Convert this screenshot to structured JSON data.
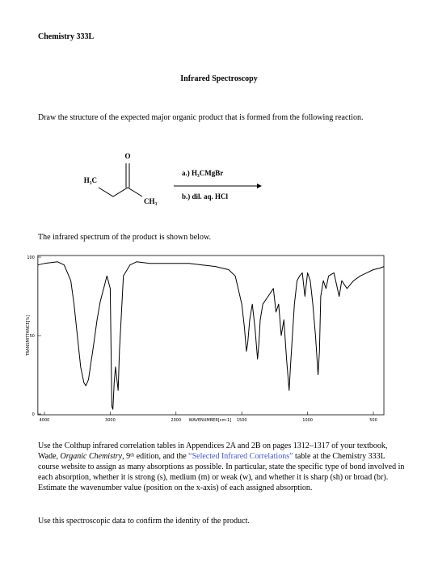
{
  "header": {
    "course": "Chemistry 333L",
    "title": "Infrared Spectroscopy"
  },
  "question": "Draw the structure of the expected major organic product that is formed from the following reaction.",
  "reaction": {
    "carbonyl_o": "O",
    "left_group": "H₃C",
    "right_group": "CH₃",
    "step_a": "a.) H₃CMgBr",
    "step_b": "b.) dil. aq. HCl"
  },
  "spectrum_intro": "The infrared spectrum of the product is shown below.",
  "chart_data": {
    "type": "line",
    "xlabel": "WAVENUMBER[cm-1]",
    "ylabel": "TRANSMITTANCE[%]",
    "xlim": [
      4100,
      420
    ],
    "xticks": [
      4000,
      3000,
      2000,
      1500,
      1000,
      500
    ],
    "ylim": [
      0,
      100
    ],
    "yticks": [
      0,
      50,
      100
    ],
    "color": "#000000",
    "x": [
      4100,
      4000,
      3800,
      3700,
      3600,
      3550,
      3500,
      3450,
      3400,
      3370,
      3330,
      3250,
      3200,
      3150,
      3100,
      3050,
      3000,
      2975,
      2960,
      2940,
      2920,
      2880,
      2860,
      2800,
      2700,
      2600,
      2400,
      2200,
      2000,
      1900,
      1800,
      1700,
      1600,
      1550,
      1500,
      1480,
      1465,
      1455,
      1440,
      1420,
      1400,
      1380,
      1370,
      1360,
      1340,
      1300,
      1260,
      1240,
      1220,
      1200,
      1180,
      1160,
      1140,
      1130,
      1100,
      1080,
      1060,
      1040,
      1020,
      1000,
      980,
      960,
      940,
      920,
      910,
      900,
      880,
      860,
      840,
      800,
      760,
      740,
      700,
      650,
      600,
      550,
      500,
      450,
      420
    ],
    "values": [
      95,
      96,
      97,
      95,
      85,
      70,
      50,
      30,
      20,
      18,
      22,
      45,
      60,
      72,
      80,
      88,
      80,
      5,
      3,
      20,
      30,
      15,
      40,
      88,
      95,
      97,
      96,
      96,
      96,
      96,
      95,
      94,
      92,
      88,
      70,
      55,
      40,
      45,
      60,
      70,
      55,
      35,
      45,
      60,
      70,
      75,
      80,
      65,
      70,
      50,
      60,
      35,
      15,
      30,
      70,
      85,
      88,
      90,
      75,
      90,
      85,
      70,
      50,
      25,
      40,
      75,
      85,
      80,
      88,
      90,
      75,
      85,
      80,
      85,
      88,
      90,
      92,
      93,
      94
    ]
  },
  "instructions": {
    "part1": "Use the Colthup infrared correlation tables in Appendices 2A and 2B on pages 1312–1317 of your textbook, Wade, ",
    "book": "Organic Chemistry",
    "part2": ", 9ᵗʰ edition, and the ",
    "link": "“Selected Infrared Correlations”",
    "part3": " table at the Chemistry 333L course website to assign as many absorptions as possible. In particular, state the specific type of bond involved in each absorption, whether it is strong (s), medium (m) or weak (w), and whether it is sharp (sh) or broad (br). Estimate the wavenumber value (position on the x-axis) of each assigned absorption."
  },
  "closing": "Use this spectroscopic data to confirm the identity of the product."
}
